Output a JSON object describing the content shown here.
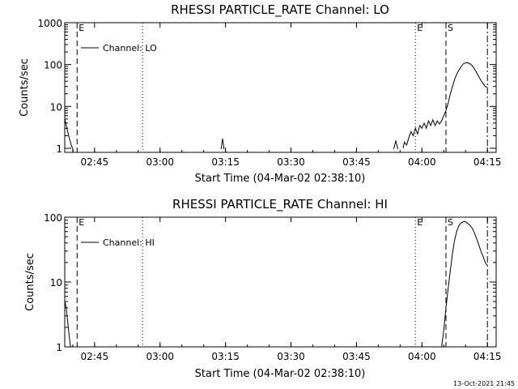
{
  "footer_timestamp": "13-Oct-2021 21:45",
  "chart_data": [
    {
      "type": "line",
      "title": "RHESSI PARTICLE_RATE Channel: LO",
      "xlabel": "Start Time (04-Mar-02 02:38:10)",
      "ylabel": "Counts/sec",
      "y_scale": "log",
      "xlim": [
        "02:38:10",
        "04:17:00"
      ],
      "ylim": [
        0.8,
        1000
      ],
      "x_ticks": [
        "02:45",
        "03:00",
        "03:15",
        "03:30",
        "03:45",
        "04:00",
        "04:15"
      ],
      "y_ticks": [
        1,
        10,
        100,
        1000
      ],
      "y_tick_labels": [
        "1",
        "10",
        "100",
        "1000"
      ],
      "legend": {
        "placement": "top-left",
        "entries": [
          "Channel: LO"
        ]
      },
      "grid": false,
      "markers": [
        {
          "time": "02:41:00",
          "style": "dashed",
          "label": "E"
        },
        {
          "time": "02:56:00",
          "style": "dotted",
          "label": ""
        },
        {
          "time": "03:58:30",
          "style": "dotted",
          "label": "E"
        },
        {
          "time": "04:05:30",
          "style": "dashed",
          "label": "S"
        },
        {
          "time": "04:15:00",
          "style": "dashdot",
          "label": ""
        }
      ],
      "series": [
        {
          "segments": [
            [
              [
                "02:38:10",
                5.0
              ],
              [
                "02:38:40",
                3.0
              ],
              [
                "02:39:10",
                1.8
              ],
              [
                "02:39:40",
                1.2
              ],
              [
                "02:40:10",
                0.85
              ]
            ],
            [
              [
                "03:14:00",
                0.95
              ],
              [
                "03:14:20",
                1.7
              ],
              [
                "03:14:40",
                0.95
              ]
            ],
            [
              [
                "03:53:30",
                0.95
              ],
              [
                "03:54:00",
                1.5
              ],
              [
                "03:54:30",
                0.95
              ]
            ],
            [
              [
                "03:55:40",
                1.0
              ],
              [
                "03:56:00",
                1.4
              ],
              [
                "03:56:30",
                1.2
              ],
              [
                "03:57:00",
                1.8
              ],
              [
                "03:57:30",
                2.5
              ],
              [
                "03:58:00",
                2.0
              ],
              [
                "03:58:30",
                3.0
              ],
              [
                "03:59:00",
                2.2
              ],
              [
                "03:59:30",
                3.5
              ],
              [
                "04:00:00",
                3.0
              ],
              [
                "04:00:30",
                4.0
              ],
              [
                "04:01:00",
                3.0
              ],
              [
                "04:01:30",
                4.5
              ],
              [
                "04:02:00",
                3.5
              ],
              [
                "04:02:30",
                4.8
              ],
              [
                "04:03:00",
                3.5
              ],
              [
                "04:03:30",
                4.5
              ],
              [
                "04:04:00",
                3.8
              ],
              [
                "04:04:30",
                4.5
              ],
              [
                "04:05:00",
                6.0
              ],
              [
                "04:05:30",
                8.0
              ],
              [
                "04:06:00",
                12.0
              ],
              [
                "04:06:30",
                20.0
              ],
              [
                "04:07:00",
                30.0
              ],
              [
                "04:07:30",
                45.0
              ],
              [
                "04:08:00",
                60.0
              ],
              [
                "04:08:30",
                75.0
              ],
              [
                "04:09:00",
                90.0
              ],
              [
                "04:09:30",
                105.0
              ],
              [
                "04:10:00",
                110.0
              ],
              [
                "04:10:30",
                110.0
              ],
              [
                "04:11:00",
                105.0
              ],
              [
                "04:11:30",
                95.0
              ],
              [
                "04:12:00",
                80.0
              ],
              [
                "04:12:30",
                65.0
              ],
              [
                "04:13:00",
                52.0
              ],
              [
                "04:13:30",
                42.0
              ],
              [
                "04:14:00",
                35.0
              ],
              [
                "04:14:30",
                30.0
              ],
              [
                "04:15:00",
                28.0
              ]
            ]
          ]
        }
      ]
    },
    {
      "type": "line",
      "title": "RHESSI PARTICLE_RATE Channel: HI",
      "xlabel": "Start Time (04-Mar-02 02:38:10)",
      "ylabel": "Counts/sec",
      "y_scale": "log",
      "xlim": [
        "02:38:10",
        "04:17:00"
      ],
      "ylim": [
        1,
        100
      ],
      "x_ticks": [
        "02:45",
        "03:00",
        "03:15",
        "03:30",
        "03:45",
        "04:00",
        "04:15"
      ],
      "y_ticks": [
        1,
        10,
        100
      ],
      "y_tick_labels": [
        "1",
        "10",
        "100"
      ],
      "legend": {
        "placement": "top-left",
        "entries": [
          "Channel: HI"
        ]
      },
      "grid": false,
      "markers": [
        {
          "time": "02:41:00",
          "style": "dashed",
          "label": "E"
        },
        {
          "time": "02:56:00",
          "style": "dotted",
          "label": ""
        },
        {
          "time": "03:58:30",
          "style": "dotted",
          "label": "E"
        },
        {
          "time": "04:05:30",
          "style": "dashed",
          "label": "S"
        },
        {
          "time": "04:15:00",
          "style": "dashdot",
          "label": ""
        }
      ],
      "series": [
        {
          "segments": [
            [
              [
                "02:38:10",
                5.0
              ],
              [
                "02:38:30",
                4.0
              ],
              [
                "02:38:50",
                2.5
              ],
              [
                "02:39:10",
                1.5
              ],
              [
                "02:39:30",
                1.0
              ]
            ],
            [
              [
                "04:04:30",
                1.0
              ],
              [
                "04:05:00",
                1.8
              ],
              [
                "04:05:30",
                4.0
              ],
              [
                "04:06:00",
                8.0
              ],
              [
                "04:06:30",
                15.0
              ],
              [
                "04:07:00",
                28.0
              ],
              [
                "04:07:30",
                45.0
              ],
              [
                "04:08:00",
                62.0
              ],
              [
                "04:08:30",
                75.0
              ],
              [
                "04:09:00",
                82.0
              ],
              [
                "04:09:30",
                85.0
              ],
              [
                "04:10:00",
                85.0
              ],
              [
                "04:10:30",
                80.0
              ],
              [
                "04:11:00",
                75.0
              ],
              [
                "04:11:30",
                68.0
              ],
              [
                "04:12:00",
                58.0
              ],
              [
                "04:12:30",
                47.0
              ],
              [
                "04:13:00",
                38.0
              ],
              [
                "04:13:30",
                30.0
              ],
              [
                "04:14:00",
                25.0
              ],
              [
                "04:14:30",
                20.0
              ],
              [
                "04:15:00",
                18.0
              ]
            ]
          ]
        }
      ]
    }
  ]
}
